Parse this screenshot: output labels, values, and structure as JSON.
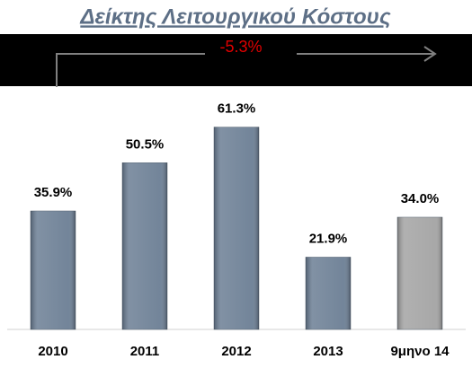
{
  "chart_data": {
    "type": "bar",
    "title": "Δείκτης Λειτουργικού Κόστους",
    "annotation": "-5.3%",
    "categories": [
      "2010",
      "2011",
      "2012",
      "2013",
      "9μηνο 14"
    ],
    "values": [
      35.9,
      50.5,
      61.3,
      21.9,
      34.0
    ],
    "value_labels": [
      "35.9%",
      "50.5%",
      "61.3%",
      "21.9%",
      "34.0%"
    ],
    "colors": [
      "#6b7e94",
      "#6b7e94",
      "#6b7e94",
      "#6b7e94",
      "#a3a3a3"
    ],
    "ylim": [
      0,
      65
    ]
  }
}
